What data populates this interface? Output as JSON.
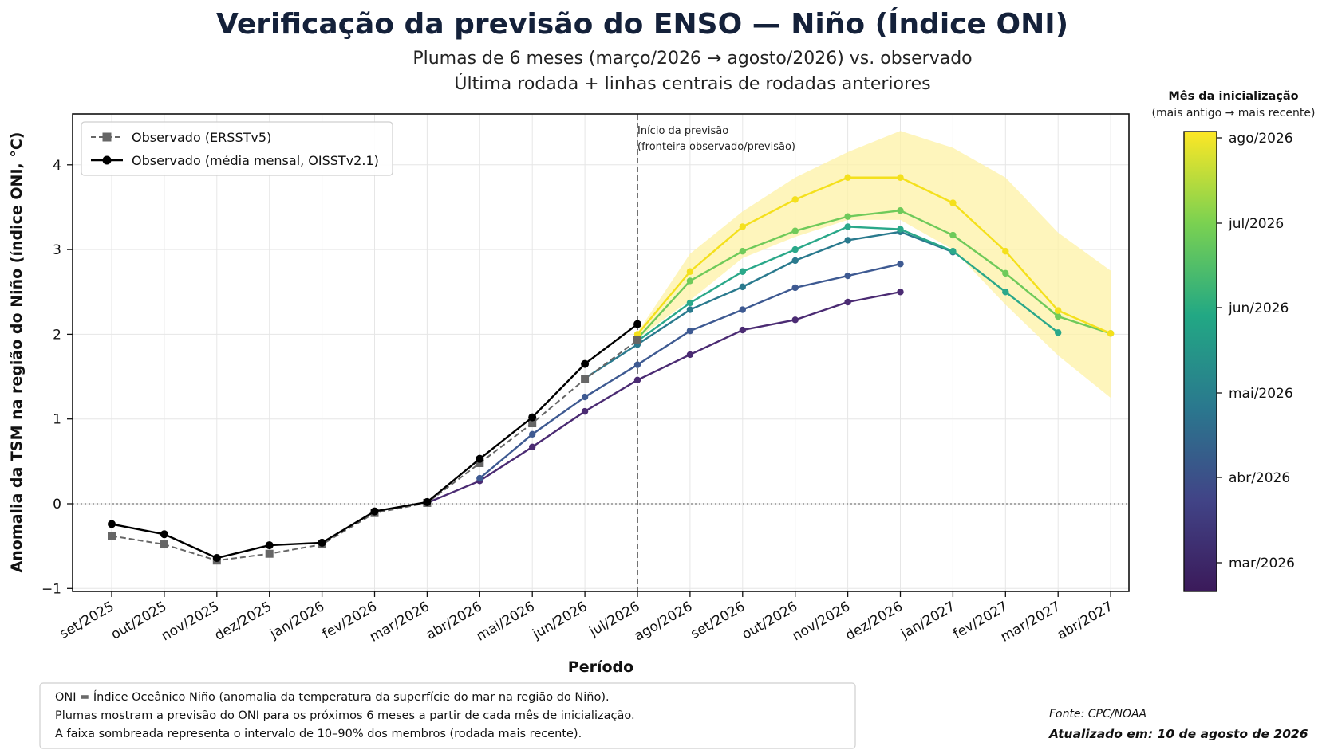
{
  "title": "Verificação da previsão do ENSO — Niño (Índice ONI)",
  "subtitle_1": "Plumas de 6 meses (março/2026 → agosto/2026) vs. observado",
  "subtitle_2": "Última rodada + linhas centrais de rodadas anteriores",
  "colorbar": {
    "title": "Mês da inicialização",
    "subtitle": "(mais antigo → mais recente)"
  },
  "annotation_1": "Início da previsão",
  "annotation_2": "(fronteira observado/previsão)",
  "footnote": [
    "ONI = Índice Oceânico Niño (anomalia da temperatura da superfície do mar na região do Niño).",
    "Plumas mostram a previsão do ONI para os próximos 6 meses a partir de cada mês de inicialização.",
    "A faixa sombreada representa o intervalo de 10–90% dos membros (rodada mais recente)."
  ],
  "source": "Fonte: CPC/NOAA",
  "updated": "Atualizado em: 10 de agosto de 2026",
  "chart_data": {
    "type": "line",
    "xlabel": "Período",
    "ylabel": "Anomalia da TSM na região do Niño (índice ONI, °C)",
    "categories": [
      "set/2025",
      "out/2025",
      "nov/2025",
      "dez/2025",
      "jan/2026",
      "fev/2026",
      "mar/2026",
      "abr/2026",
      "mai/2026",
      "jun/2026",
      "jul/2026",
      "ago/2026",
      "set/2026",
      "out/2026",
      "nov/2026",
      "dez/2026",
      "jan/2027",
      "fev/2027",
      "mar/2027",
      "abr/2027"
    ],
    "ylim": [
      -1,
      4.6
    ],
    "yticks": [
      -1,
      0,
      1,
      2,
      3,
      4
    ],
    "grid": true,
    "legend_position": "top-left",
    "forecast_start": "jul/2026",
    "observed": [
      {
        "name": "Observado (ERSSTv5)",
        "color": "#666666",
        "style": "dashed-square",
        "x": [
          "set/2025",
          "out/2025",
          "nov/2025",
          "dez/2025",
          "jan/2026",
          "fev/2026",
          "mar/2026",
          "abr/2026",
          "mai/2026",
          "jun/2026",
          "jul/2026"
        ],
        "values": [
          -0.38,
          -0.48,
          -0.67,
          -0.59,
          -0.48,
          -0.11,
          0.01,
          0.48,
          0.95,
          1.47,
          1.93
        ]
      },
      {
        "name": "Observado (média mensal, OISSTv2.1)",
        "color": "#000000",
        "style": "solid-circle",
        "x": [
          "set/2025",
          "out/2025",
          "nov/2025",
          "dez/2025",
          "jan/2026",
          "fev/2026",
          "mar/2026",
          "abr/2026",
          "mai/2026",
          "jun/2026",
          "jul/2026"
        ],
        "values": [
          -0.24,
          -0.36,
          -0.64,
          -0.49,
          -0.46,
          -0.09,
          0.02,
          0.53,
          1.02,
          1.65,
          2.12
        ]
      }
    ],
    "plumes": [
      {
        "init": "mar/2026",
        "color": "#4b2b73",
        "x": [
          "mar/2026",
          "abr/2026",
          "mai/2026",
          "jun/2026",
          "jul/2026",
          "ago/2026",
          "set/2026",
          "out/2026",
          "nov/2026",
          "dez/2026"
        ],
        "values": [
          0.01,
          0.27,
          0.67,
          1.09,
          1.46,
          1.76,
          2.05,
          2.17,
          2.38,
          2.5
        ]
      },
      {
        "init": "abr/2026",
        "color": "#3e5a92",
        "x": [
          "abr/2026",
          "mai/2026",
          "jun/2026",
          "jul/2026",
          "ago/2026",
          "set/2026",
          "out/2026",
          "nov/2026",
          "dez/2026"
        ],
        "values": [
          0.3,
          0.82,
          1.26,
          1.64,
          2.04,
          2.29,
          2.55,
          2.69,
          2.83
        ]
      },
      {
        "init": "mai/2026",
        "color": "#2a7a8e",
        "x": [
          "jun/2026",
          "jul/2026",
          "ago/2026",
          "set/2026",
          "out/2026",
          "nov/2026",
          "dez/2026",
          "jan/2027"
        ],
        "values": [
          1.48,
          1.88,
          2.29,
          2.56,
          2.87,
          3.11,
          3.21,
          2.97
        ]
      },
      {
        "init": "jun/2026",
        "color": "#2aa88a",
        "x": [
          "jul/2026",
          "ago/2026",
          "set/2026",
          "out/2026",
          "nov/2026",
          "dez/2026",
          "jan/2027",
          "fev/2027",
          "mar/2027"
        ],
        "values": [
          1.92,
          2.37,
          2.74,
          3.0,
          3.27,
          3.24,
          2.98,
          2.5,
          2.02
        ]
      },
      {
        "init": "jul/2026",
        "color": "#6fca5a",
        "x": [
          "jul/2026",
          "ago/2026",
          "set/2026",
          "out/2026",
          "nov/2026",
          "dez/2026",
          "jan/2027",
          "fev/2027",
          "mar/2027",
          "abr/2027"
        ],
        "values": [
          1.95,
          2.63,
          2.98,
          3.22,
          3.39,
          3.46,
          3.17,
          2.72,
          2.21,
          2.01
        ]
      },
      {
        "init": "ago/2026",
        "color": "#f4e01c",
        "x": [
          "jul/2026",
          "ago/2026",
          "set/2026",
          "out/2026",
          "nov/2026",
          "dez/2026",
          "jan/2027",
          "fev/2027",
          "mar/2027",
          "abr/2027"
        ],
        "values": [
          2.0,
          2.74,
          3.27,
          3.59,
          3.85,
          3.85,
          3.55,
          2.98,
          2.28,
          2.01
        ]
      }
    ],
    "band": {
      "name": "10–90% (rodada mais recente)",
      "color": "#fdf2a6",
      "x": [
        "jul/2026",
        "ago/2026",
        "set/2026",
        "out/2026",
        "nov/2026",
        "dez/2026",
        "jan/2027",
        "fev/2027",
        "mar/2027",
        "abr/2027"
      ],
      "upper": [
        2.02,
        2.95,
        3.45,
        3.85,
        4.15,
        4.4,
        4.2,
        3.85,
        3.2,
        2.75
      ],
      "lower": [
        1.95,
        2.4,
        2.9,
        3.15,
        3.35,
        3.35,
        3.0,
        2.35,
        1.75,
        1.25
      ]
    },
    "colorbar_ticks": [
      "mar/2026",
      "abr/2026",
      "mai/2026",
      "jun/2026",
      "jul/2026",
      "ago/2026"
    ]
  }
}
